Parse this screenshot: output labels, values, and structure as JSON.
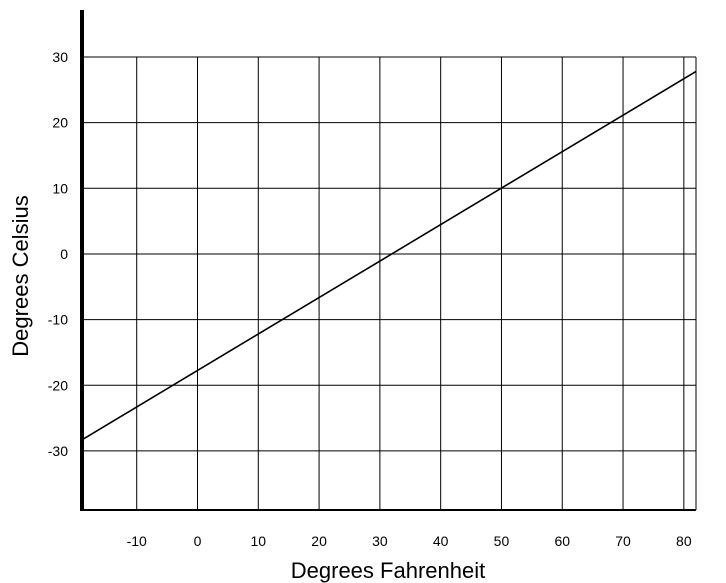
{
  "chart_data": {
    "type": "line",
    "xlabel": "Degrees Fahrenheit",
    "ylabel": "Degrees Celsius",
    "xlim": [
      -19,
      82
    ],
    "ylim": [
      -39,
      30
    ],
    "x_ticks": [
      -10,
      0,
      10,
      20,
      30,
      40,
      50,
      60,
      70,
      80
    ],
    "y_ticks": [
      30,
      20,
      10,
      0,
      -10,
      -20,
      -30
    ],
    "grid": true,
    "series": [
      {
        "x": [
          -19,
          82
        ],
        "y": [
          -28.3,
          27.8
        ],
        "color": "#000000"
      }
    ]
  }
}
